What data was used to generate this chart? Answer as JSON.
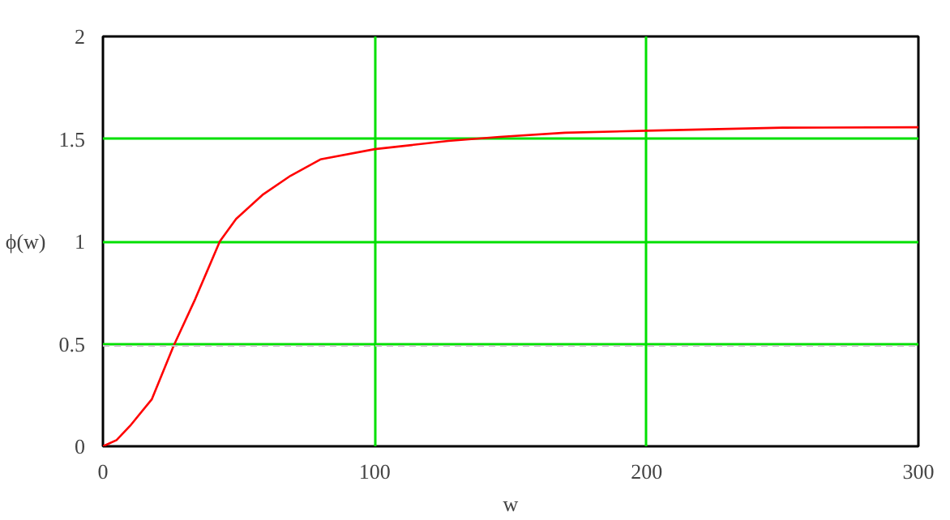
{
  "chart_data": {
    "type": "line",
    "xlabel": "w",
    "ylabel": "ϕ(w)",
    "xlim": [
      0,
      300
    ],
    "ylim": [
      0,
      2
    ],
    "xticks": [
      0,
      100,
      200,
      300
    ],
    "yticks": [
      0,
      0.5,
      1,
      1.5,
      2
    ],
    "grid": true,
    "marker": "none",
    "line_style": "solid",
    "series": [
      {
        "color": "#ff0000",
        "x": [
          0,
          5,
          10,
          18,
          26,
          34,
          43,
          49,
          59,
          69,
          80,
          100,
          127,
          146,
          170,
          200,
          250,
          300
        ],
        "values": [
          0,
          0.03,
          0.1,
          0.23,
          0.49,
          0.72,
          1.0,
          1.11,
          1.23,
          1.32,
          1.4,
          1.45,
          1.49,
          1.51,
          1.53,
          1.54,
          1.555,
          1.557
        ]
      }
    ],
    "ref_lines": [
      {
        "axis": "y",
        "value": 0.49,
        "color": "#c0c0c0",
        "line_style": "dashed"
      }
    ]
  }
}
